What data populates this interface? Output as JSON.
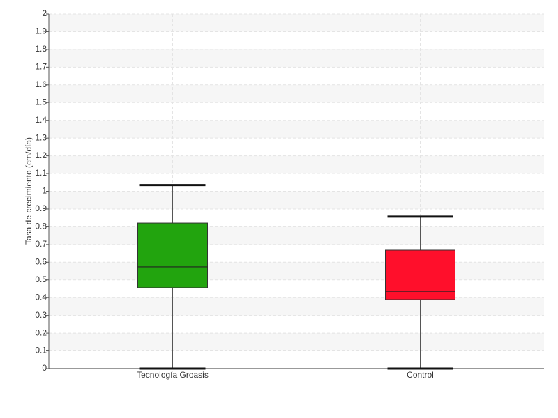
{
  "chart_data": {
    "type": "box",
    "y_label": "Tasa de crecimiento (cm/día)",
    "categories": [
      "Tecnología Groasis",
      "Control"
    ],
    "boxes": [
      {
        "min": 0,
        "q1": 0.456,
        "median": 0.574,
        "q3": 0.821,
        "max": 1.035,
        "color": "#22a40e"
      },
      {
        "min": 0,
        "q1": 0.389,
        "median": 0.436,
        "q3": 0.668,
        "max": 0.857,
        "color": "#ff0f2b"
      }
    ],
    "ylim": [
      0,
      2
    ],
    "yticks": [
      0,
      0.1,
      0.2,
      0.3,
      0.4,
      0.5,
      0.6,
      0.7,
      0.8,
      0.9,
      1,
      1.1,
      1.2,
      1.3,
      1.4,
      1.5,
      1.6,
      1.7,
      1.8,
      1.9,
      2
    ],
    "grid": true
  }
}
